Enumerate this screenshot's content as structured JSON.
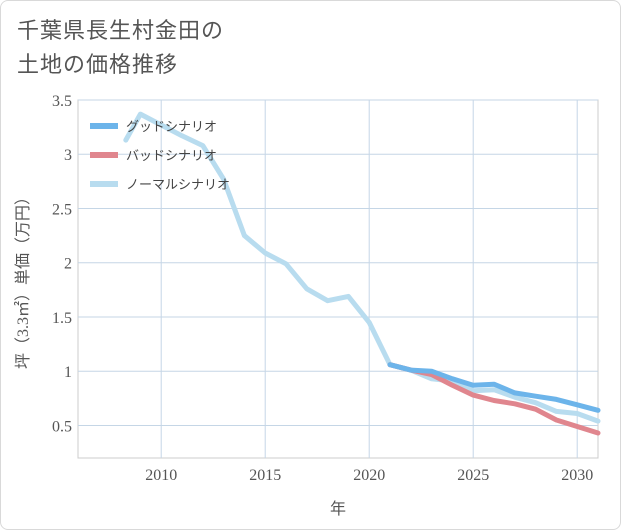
{
  "title": "千葉県長生村金田の\n土地の価格推移",
  "chart_data": {
    "type": "line",
    "xlabel": "年",
    "ylabel": "坪（3.3㎡）単価（万円）",
    "xlim": [
      2006,
      2031
    ],
    "ylim": [
      0.2,
      3.5
    ],
    "xticks": [
      2010,
      2015,
      2020,
      2025,
      2030
    ],
    "yticks": [
      0.5,
      1,
      1.5,
      2,
      2.5,
      3,
      3.5
    ],
    "ytick_labels": [
      "0.5",
      "1",
      "1.5",
      "2",
      "2.5",
      "3",
      "3.5"
    ],
    "grid": true,
    "legend_position": "top-left",
    "series": [
      {
        "name": "グッドシナリオ",
        "color": "#6cb4ea",
        "points": [
          [
            2021,
            1.06
          ],
          [
            2022,
            1.01
          ],
          [
            2023,
            1.0
          ],
          [
            2024,
            0.93
          ],
          [
            2025,
            0.87
          ],
          [
            2026,
            0.88
          ],
          [
            2027,
            0.8
          ],
          [
            2028,
            0.77
          ],
          [
            2029,
            0.74
          ],
          [
            2030,
            0.69
          ],
          [
            2031,
            0.64
          ]
        ]
      },
      {
        "name": "バッドシナリオ",
        "color": "#e0868e",
        "points": [
          [
            2021,
            1.06
          ],
          [
            2022,
            1.01
          ],
          [
            2023,
            0.97
          ],
          [
            2024,
            0.87
          ],
          [
            2025,
            0.78
          ],
          [
            2026,
            0.73
          ],
          [
            2027,
            0.7
          ],
          [
            2028,
            0.65
          ],
          [
            2029,
            0.55
          ],
          [
            2030,
            0.49
          ],
          [
            2031,
            0.43
          ]
        ]
      },
      {
        "name": "ノーマルシナリオ",
        "color": "#b8dcef",
        "points": [
          [
            2008.3,
            3.13
          ],
          [
            2009,
            3.37
          ],
          [
            2010,
            3.27
          ],
          [
            2011,
            3.17
          ],
          [
            2012,
            3.08
          ],
          [
            2013,
            2.77
          ],
          [
            2014,
            2.25
          ],
          [
            2015,
            2.09
          ],
          [
            2016,
            1.99
          ],
          [
            2017,
            1.76
          ],
          [
            2018,
            1.65
          ],
          [
            2019,
            1.69
          ],
          [
            2020,
            1.45
          ],
          [
            2021,
            1.06
          ],
          [
            2022,
            1.01
          ],
          [
            2023,
            0.93
          ],
          [
            2024,
            0.91
          ],
          [
            2025,
            0.82
          ],
          [
            2026,
            0.83
          ],
          [
            2027,
            0.76
          ],
          [
            2028,
            0.71
          ],
          [
            2029,
            0.63
          ],
          [
            2030,
            0.61
          ],
          [
            2031,
            0.54
          ]
        ]
      }
    ]
  }
}
